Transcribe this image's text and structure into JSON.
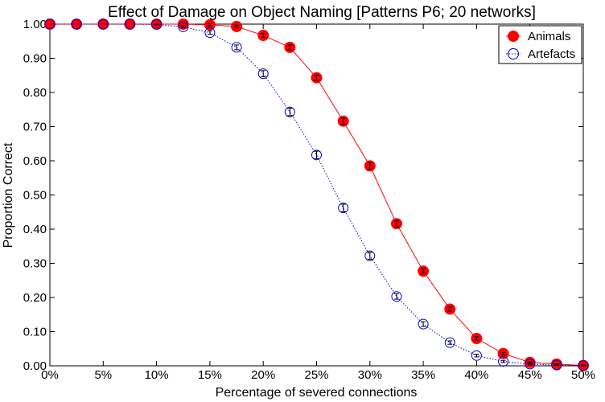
{
  "chart_data": {
    "type": "line",
    "title": "Effect of Damage on Object Naming [Patterns P6; 20 networks]",
    "xlabel": "Percentage of severed connections",
    "ylabel": "Proportion Correct",
    "xlim": [
      0,
      50
    ],
    "ylim": [
      0,
      1
    ],
    "x_ticks": [
      0,
      5,
      10,
      15,
      20,
      25,
      30,
      35,
      40,
      45,
      50
    ],
    "x_tick_labels": [
      "0%",
      "5%",
      "10%",
      "15%",
      "20%",
      "25%",
      "30%",
      "35%",
      "40%",
      "45%",
      "50%"
    ],
    "y_ticks": [
      0,
      0.1,
      0.2,
      0.3,
      0.4,
      0.5,
      0.6,
      0.7,
      0.8,
      0.9,
      1.0
    ],
    "y_tick_labels": [
      "0.00",
      "0.10",
      "0.20",
      "0.30",
      "0.40",
      "0.50",
      "0.60",
      "0.70",
      "0.80",
      "0.90",
      "1.00"
    ],
    "legend": "top-right",
    "grid": false,
    "x": [
      0,
      2.5,
      5,
      7.5,
      10,
      12.5,
      15,
      17.5,
      20,
      22.5,
      25,
      27.5,
      30,
      32.5,
      35,
      37.5,
      40,
      42.5,
      45,
      47.5,
      50
    ],
    "series": [
      {
        "name": "Animals",
        "color": "#ff0000",
        "marker": "filled-circle",
        "line_style": "solid",
        "values": [
          1.0,
          1.0,
          1.0,
          1.0,
          1.0,
          1.0,
          0.998,
          0.993,
          0.967,
          0.932,
          0.843,
          0.716,
          0.585,
          0.416,
          0.277,
          0.166,
          0.08,
          0.036,
          0.01,
          0.005,
          0.001
        ],
        "errors": [
          0,
          0,
          0,
          0,
          0,
          0,
          0.003,
          0.004,
          0.006,
          0.007,
          0.008,
          0.009,
          0.01,
          0.009,
          0.007,
          0.006,
          0.005,
          0.003,
          0.002,
          0.001,
          0.001
        ]
      },
      {
        "name": "Artefacts",
        "color": "#0000cc",
        "marker": "open-circle",
        "line_style": "dotted",
        "values": [
          1.0,
          1.0,
          1.0,
          1.0,
          0.999,
          0.992,
          0.975,
          0.932,
          0.855,
          0.743,
          0.617,
          0.462,
          0.322,
          0.203,
          0.122,
          0.068,
          0.03,
          0.013,
          0.005,
          0.002,
          0.001
        ],
        "errors": [
          0,
          0,
          0,
          0,
          0.001,
          0.003,
          0.005,
          0.007,
          0.009,
          0.011,
          0.011,
          0.011,
          0.01,
          0.008,
          0.007,
          0.005,
          0.004,
          0.003,
          0.002,
          0.001,
          0.001
        ]
      }
    ]
  }
}
